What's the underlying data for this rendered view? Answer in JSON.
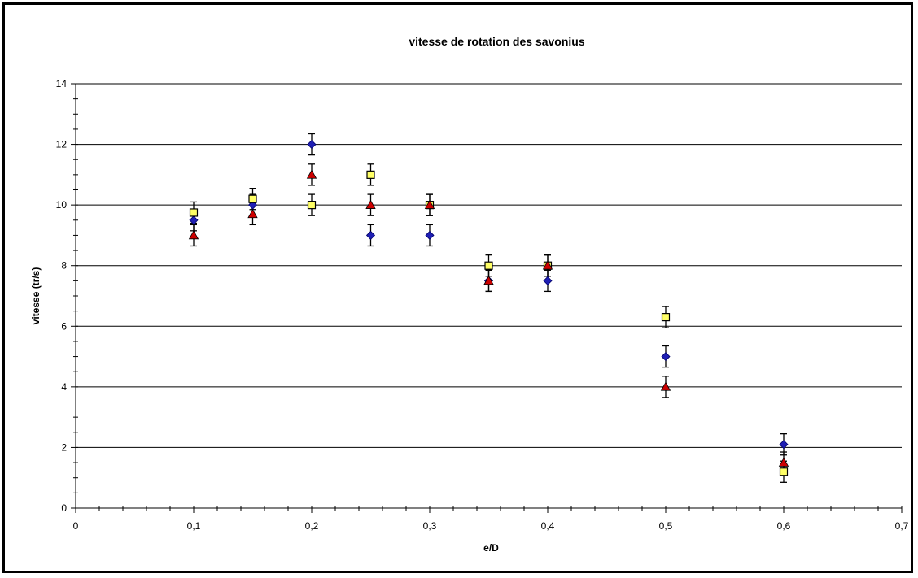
{
  "chart_data": {
    "type": "scatter",
    "title": "vitesse de rotation des savonius",
    "xlabel": "e/D",
    "ylabel": "vitesse (tr/s)",
    "xlim": [
      0,
      0.7
    ],
    "ylim": [
      0,
      14
    ],
    "x_ticks": [
      0,
      0.1,
      0.2,
      0.3,
      0.4,
      0.5,
      0.6,
      0.7
    ],
    "x_tick_labels": [
      "0",
      "0,1",
      "0,2",
      "0,3",
      "0,4",
      "0,5",
      "0,6",
      "0,7"
    ],
    "y_ticks": [
      0,
      2,
      4,
      6,
      8,
      10,
      12,
      14
    ],
    "y_tick_labels": [
      "0",
      "2",
      "4",
      "6",
      "8",
      "10",
      "12",
      "14"
    ],
    "grid": "horizontal-major",
    "legend": "none",
    "error_bars": "±0.35 approx.",
    "series": [
      {
        "marker": "diamond",
        "color": "#1f1fb4",
        "points": [
          {
            "x": 0.1,
            "y": 9.5
          },
          {
            "x": 0.15,
            "y": 10.0
          },
          {
            "x": 0.2,
            "y": 12.0
          },
          {
            "x": 0.25,
            "y": 9.0
          },
          {
            "x": 0.3,
            "y": 9.0
          },
          {
            "x": 0.35,
            "y": 7.5
          },
          {
            "x": 0.4,
            "y": 7.5
          },
          {
            "x": 0.5,
            "y": 5.0
          },
          {
            "x": 0.6,
            "y": 2.1
          }
        ]
      },
      {
        "marker": "square",
        "color": "#ffff66",
        "points": [
          {
            "x": 0.1,
            "y": 9.75
          },
          {
            "x": 0.15,
            "y": 10.2
          },
          {
            "x": 0.2,
            "y": 10.0
          },
          {
            "x": 0.25,
            "y": 11.0
          },
          {
            "x": 0.3,
            "y": 10.0
          },
          {
            "x": 0.35,
            "y": 8.0
          },
          {
            "x": 0.4,
            "y": 8.0
          },
          {
            "x": 0.5,
            "y": 6.3
          },
          {
            "x": 0.6,
            "y": 1.2
          }
        ]
      },
      {
        "marker": "triangle",
        "color": "#cc0000",
        "points": [
          {
            "x": 0.1,
            "y": 9.0
          },
          {
            "x": 0.15,
            "y": 9.7
          },
          {
            "x": 0.2,
            "y": 11.0
          },
          {
            "x": 0.25,
            "y": 10.0
          },
          {
            "x": 0.3,
            "y": 10.0
          },
          {
            "x": 0.35,
            "y": 7.5
          },
          {
            "x": 0.4,
            "y": 8.0
          },
          {
            "x": 0.5,
            "y": 4.0
          },
          {
            "x": 0.6,
            "y": 1.5
          }
        ]
      }
    ]
  }
}
